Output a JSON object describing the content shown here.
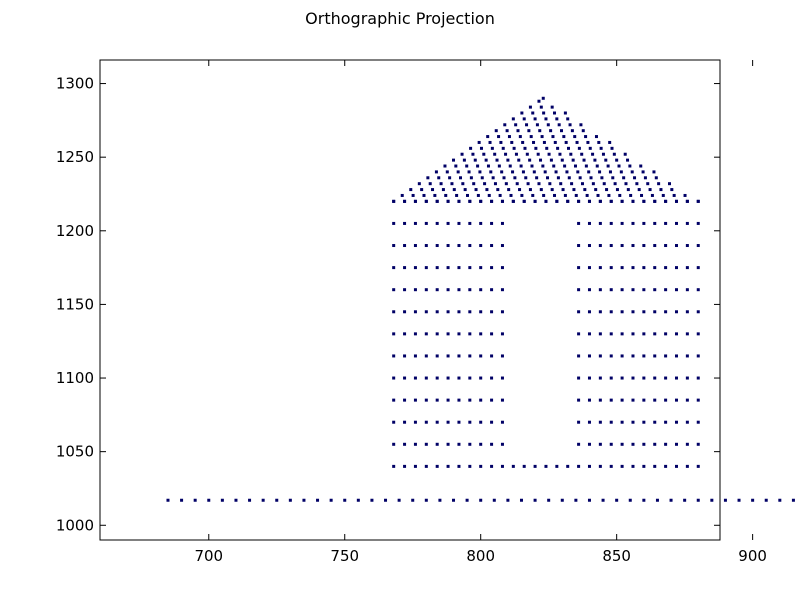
{
  "chart_data": {
    "type": "scatter",
    "title": "Orthographic Projection",
    "xlabel": "",
    "ylabel": "",
    "xlim": [
      660,
      888
    ],
    "ylim": [
      990,
      1316
    ],
    "x_ticks": [
      700,
      750,
      800,
      850,
      900
    ],
    "y_ticks": [
      1000,
      1050,
      1100,
      1150,
      1200,
      1250,
      1300
    ],
    "grid": false,
    "marker_color": "#000066",
    "groups": [
      {
        "name": "ground",
        "x": {
          "start": 685,
          "end": 960,
          "step": 5
        },
        "y": [
          1017
        ]
      },
      {
        "name": "wall-rows",
        "x": {
          "start": 768,
          "end": 882,
          "step": 4
        },
        "y": [
          1205,
          1190,
          1175,
          1160,
          1145,
          1130,
          1115,
          1100,
          1085,
          1070,
          1055
        ],
        "gap_x": [
          810,
          834
        ]
      },
      {
        "name": "door-top-row",
        "x": {
          "start": 768,
          "end": 882,
          "step": 4
        },
        "y": [
          1220
        ]
      },
      {
        "name": "base-row",
        "x": {
          "start": 768,
          "end": 882,
          "step": 4
        },
        "y": [
          1040
        ]
      },
      {
        "name": "roof",
        "apex": [
          823,
          1290
        ],
        "base_y": 1220,
        "base_x": [
          768,
          880
        ],
        "row_step": 4
      }
    ]
  }
}
